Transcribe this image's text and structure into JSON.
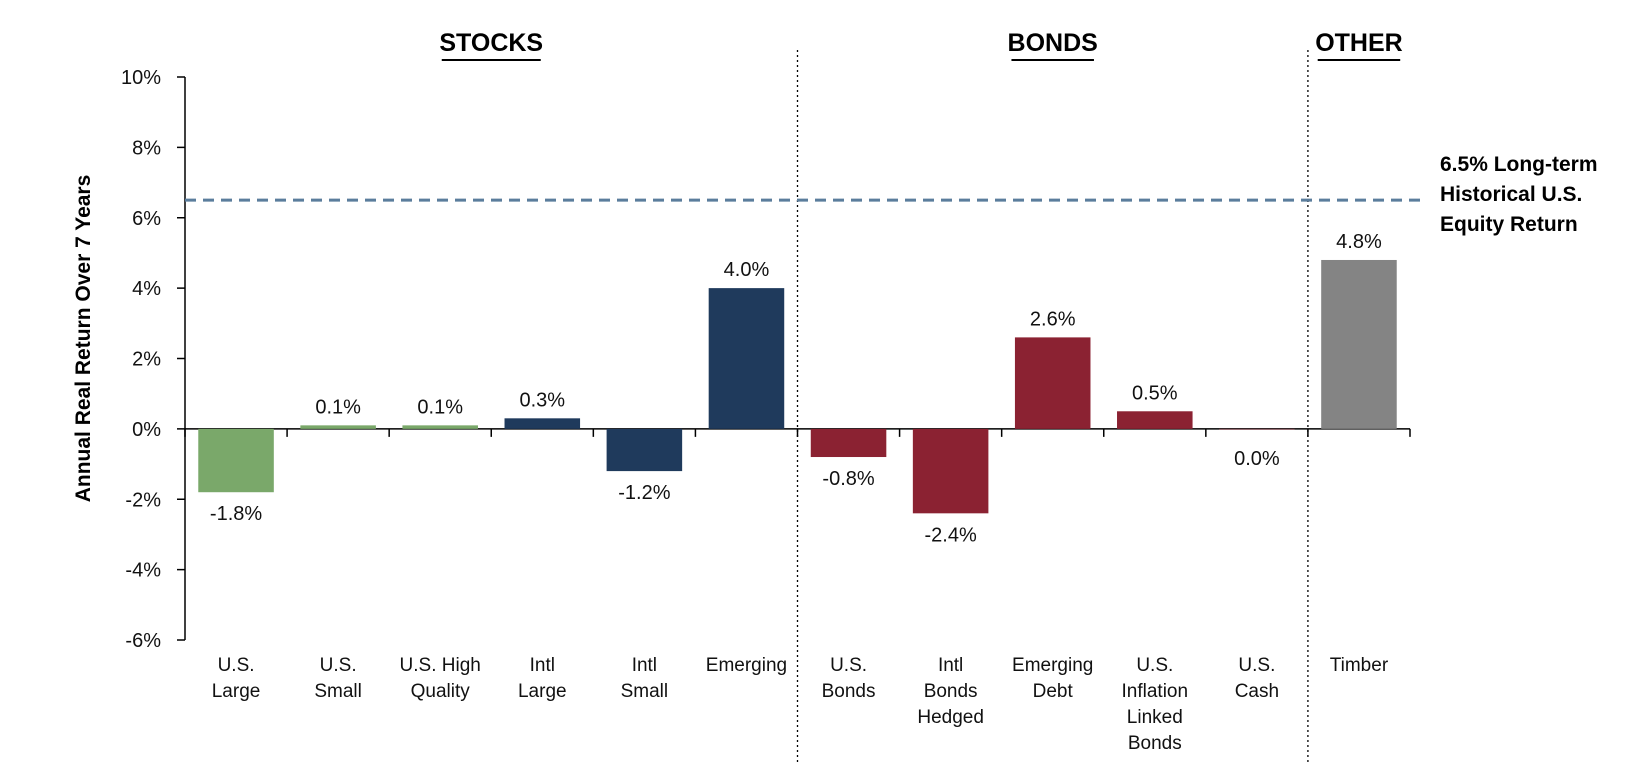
{
  "chart_data": {
    "type": "bar",
    "ylabel": "Annual Real Return Over 7 Years",
    "ylim": [
      -6,
      10
    ],
    "yticks": [
      {
        "value": 10,
        "label": "10%"
      },
      {
        "value": 8,
        "label": "8%"
      },
      {
        "value": 6,
        "label": "6%"
      },
      {
        "value": 4,
        "label": "4%"
      },
      {
        "value": 2,
        "label": "2%"
      },
      {
        "value": 0,
        "label": "0%"
      },
      {
        "value": -2,
        "label": "-2%"
      },
      {
        "value": -4,
        "label": "-4%"
      },
      {
        "value": -6,
        "label": "-6%"
      }
    ],
    "categories": [
      {
        "label": [
          "U.S.",
          "Large"
        ],
        "value": -1.8,
        "data_label": "-1.8%",
        "group": "stocks_us"
      },
      {
        "label": [
          "U.S.",
          "Small"
        ],
        "value": 0.1,
        "data_label": "0.1%",
        "group": "stocks_us"
      },
      {
        "label": [
          "U.S. High",
          "Quality"
        ],
        "value": 0.1,
        "data_label": "0.1%",
        "group": "stocks_us"
      },
      {
        "label": [
          "Intl",
          "Large"
        ],
        "value": 0.3,
        "data_label": "0.3%",
        "group": "stocks_intl"
      },
      {
        "label": [
          "Intl",
          "Small"
        ],
        "value": -1.2,
        "data_label": "-1.2%",
        "group": "stocks_intl"
      },
      {
        "label": [
          "Emerging"
        ],
        "value": 4.0,
        "data_label": "4.0%",
        "group": "stocks_intl"
      },
      {
        "label": [
          "U.S.",
          "Bonds"
        ],
        "value": -0.8,
        "data_label": "-0.8%",
        "group": "bonds"
      },
      {
        "label": [
          "Intl",
          "Bonds",
          "Hedged"
        ],
        "value": -2.4,
        "data_label": "-2.4%",
        "group": "bonds"
      },
      {
        "label": [
          "Emerging",
          "Debt"
        ],
        "value": 2.6,
        "data_label": "2.6%",
        "group": "bonds"
      },
      {
        "label": [
          "U.S.",
          "Inflation",
          "Linked",
          "Bonds"
        ],
        "value": 0.5,
        "data_label": "0.5%",
        "group": "bonds"
      },
      {
        "label": [
          "U.S.",
          "Cash"
        ],
        "value": 0.0,
        "data_label": "0.0%",
        "group": "bonds"
      },
      {
        "label": [
          "Timber"
        ],
        "value": 4.8,
        "data_label": "4.8%",
        "group": "other"
      }
    ],
    "colors": {
      "stocks_us": "#7aa86a",
      "stocks_intl": "#1f3a5c",
      "bonds": "#8b2232",
      "other": "#848484",
      "reference_line": "#5b7d9c"
    },
    "groups": [
      {
        "name": "STOCKS",
        "first": 0,
        "last": 5
      },
      {
        "name": "BONDS",
        "first": 6,
        "last": 10
      },
      {
        "name": "OTHER",
        "first": 11,
        "last": 11
      }
    ],
    "reference_line": {
      "value": 6.5,
      "label": [
        "6.5% Long-term",
        "Historical U.S.",
        "Equity Return"
      ]
    },
    "grid": false
  }
}
